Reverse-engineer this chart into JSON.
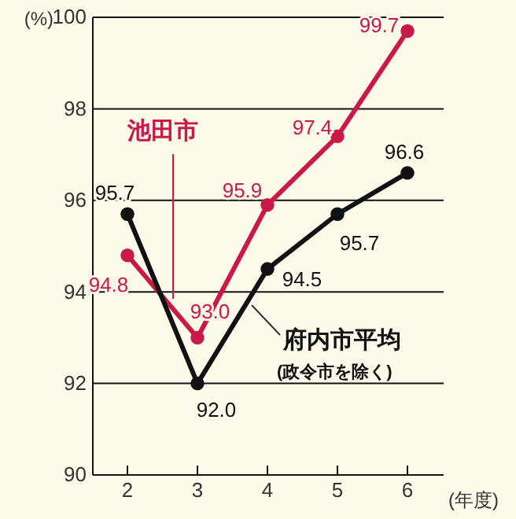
{
  "chart_data": {
    "type": "line",
    "categories": [
      "2",
      "3",
      "4",
      "5",
      "6"
    ],
    "ylabel": "(%)",
    "xlabel": "(年度)",
    "ylim": [
      90,
      100
    ],
    "yticks": [
      90,
      92,
      94,
      96,
      98,
      100
    ],
    "grid": "y",
    "marker": "circle",
    "line_style": "solid",
    "series": [
      {
        "name": "池田市",
        "color": "#c8194a",
        "values": [
          94.8,
          93.0,
          95.9,
          97.4,
          99.7
        ],
        "value_labels": [
          "94.8",
          "93.0",
          "95.9",
          "97.4",
          "99.7"
        ]
      },
      {
        "name": "府内市平均",
        "color": "#111111",
        "values": [
          95.7,
          92.0,
          94.5,
          95.7,
          96.6
        ],
        "value_labels": [
          "95.7",
          "92.0",
          "94.5",
          "95.7",
          "96.6"
        ]
      }
    ],
    "annotations": [
      "(政令市を除く)"
    ]
  }
}
